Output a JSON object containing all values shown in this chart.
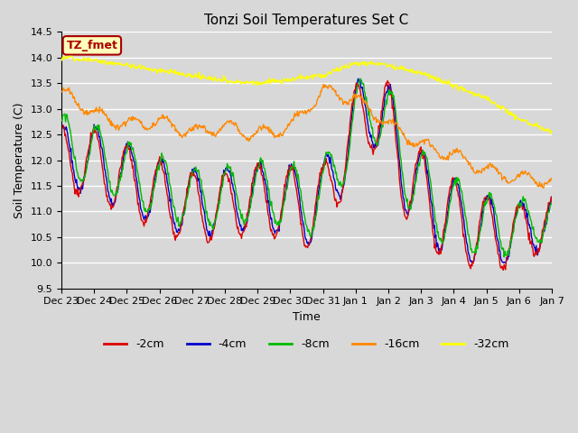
{
  "title": "Tonzi Soil Temperatures Set C",
  "xlabel": "Time",
  "ylabel": "Soil Temperature (C)",
  "ylim": [
    9.5,
    14.5
  ],
  "background_color": "#d8d8d8",
  "plot_bg_color": "#d8d8d8",
  "grid_color": "#ffffff",
  "xtick_labels": [
    "Dec 23",
    "Dec 24",
    "Dec 25",
    "Dec 26",
    "Dec 27",
    "Dec 28",
    "Dec 29",
    "Dec 30",
    "Dec 31",
    "Jan 1",
    "Jan 2",
    "Jan 3",
    "Jan 4",
    "Jan 5",
    "Jan 6",
    "Jan 7"
  ],
  "colors": {
    "-2cm": "#dd0000",
    "-4cm": "#0000cc",
    "-8cm": "#00bb00",
    "-16cm": "#ff8800",
    "-32cm": "#ffff00"
  },
  "annotation_text": "TZ_fmet",
  "annotation_color": "#aa0000",
  "annotation_bg": "#ffffbb",
  "annotation_border": "#aa0000",
  "yticks": [
    9.5,
    10.0,
    10.5,
    11.0,
    11.5,
    12.0,
    12.5,
    13.0,
    13.5,
    14.0,
    14.5
  ],
  "title_fontsize": 11,
  "axis_fontsize": 9,
  "tick_fontsize": 8
}
